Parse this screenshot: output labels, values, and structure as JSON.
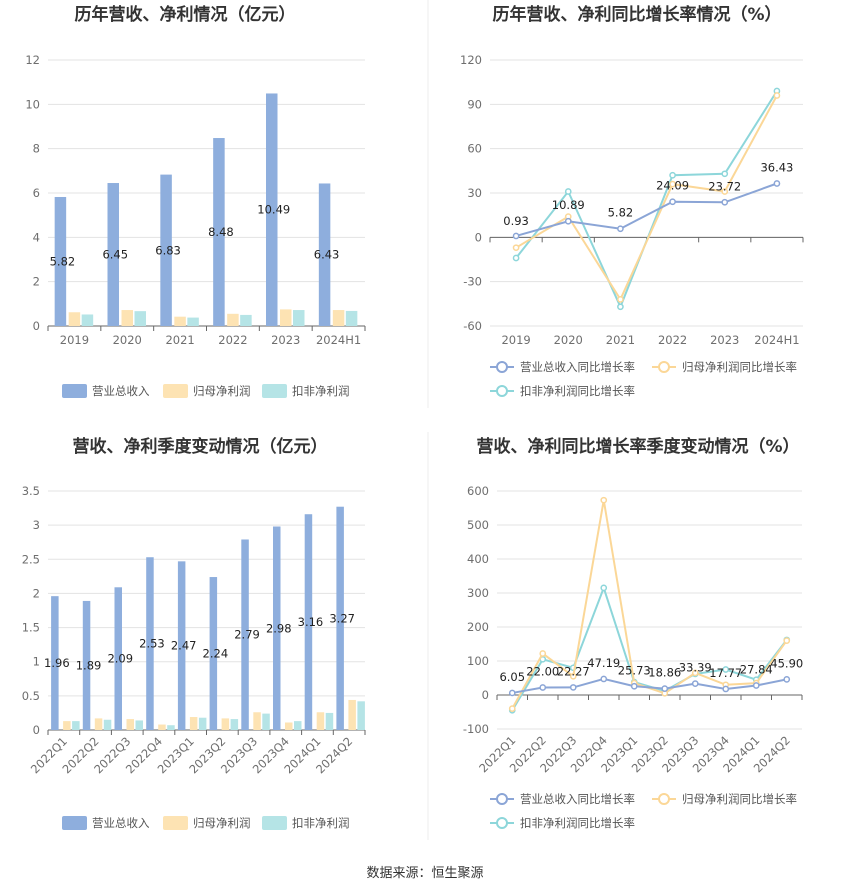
{
  "colors": {
    "revenue": "#8eaedd",
    "net_profit": "#fde3b3",
    "deducted_profit": "#b5e4e6",
    "revenue_line": "#8ba5d6",
    "net_profit_line": "#fbd797",
    "deducted_line": "#8dd6da"
  },
  "source": "数据来源：恒生聚源",
  "chart_data": [
    {
      "type": "bar",
      "title": "历年营收、净利情况（亿元）",
      "categories": [
        "2019",
        "2020",
        "2021",
        "2022",
        "2023",
        "2024H1"
      ],
      "ylim": [
        0,
        12
      ],
      "yticks": [
        "0",
        "2",
        "4",
        "6",
        "8",
        "10",
        "12"
      ],
      "series": [
        {
          "name": "营业总收入",
          "values": [
            5.82,
            6.45,
            6.83,
            8.48,
            10.49,
            6.43
          ],
          "labels": [
            "5.82",
            "6.45",
            "6.83",
            "8.48",
            "10.49",
            "6.43"
          ]
        },
        {
          "name": "归母净利润",
          "values": [
            0.62,
            0.72,
            0.42,
            0.55,
            0.75,
            0.72
          ]
        },
        {
          "name": "扣非净利润",
          "values": [
            0.52,
            0.67,
            0.38,
            0.5,
            0.72,
            0.68
          ]
        }
      ],
      "legend": "bottom",
      "grid": true
    },
    {
      "type": "line",
      "title": "历年营收、净利同比增长率情况（%）",
      "categories": [
        "2019",
        "2020",
        "2021",
        "2022",
        "2023",
        "2024H1"
      ],
      "ylim": [
        -60,
        120
      ],
      "yticks": [
        "-60",
        "-30",
        "0",
        "30",
        "60",
        "90",
        "120"
      ],
      "series": [
        {
          "name": "营业总收入同比增长率",
          "values": [
            0.93,
            10.89,
            5.82,
            24.09,
            23.72,
            36.43
          ],
          "labels": [
            "0.93",
            "10.89",
            "5.82",
            "24.09",
            "23.72",
            "36.43"
          ]
        },
        {
          "name": "归母净利润同比增长率",
          "values": [
            -7,
            14,
            -42,
            36,
            31,
            96
          ]
        },
        {
          "name": "扣非净利润同比增长率",
          "values": [
            -14,
            31,
            -47,
            42,
            43,
            99
          ]
        }
      ],
      "legend": "bottom",
      "grid": true
    },
    {
      "type": "bar",
      "title": "营收、净利季度变动情况（亿元）",
      "categories": [
        "2022Q1",
        "2022Q2",
        "2022Q3",
        "2022Q4",
        "2023Q1",
        "2023Q2",
        "2023Q3",
        "2023Q4",
        "2024Q1",
        "2024Q2"
      ],
      "ylim": [
        0,
        3.5
      ],
      "yticks": [
        "0",
        "0.5",
        "1",
        "1.5",
        "2",
        "2.5",
        "3",
        "3.5"
      ],
      "series": [
        {
          "name": "营业总收入",
          "values": [
            1.96,
            1.89,
            2.09,
            2.53,
            2.47,
            2.24,
            2.79,
            2.98,
            3.16,
            3.27
          ],
          "labels": [
            "1.96",
            "1.89",
            "2.09",
            "2.53",
            "2.47",
            "2.24",
            "2.79",
            "2.98",
            "3.16",
            "3.27"
          ]
        },
        {
          "name": "归母净利润",
          "values": [
            0.13,
            0.17,
            0.16,
            0.08,
            0.19,
            0.17,
            0.26,
            0.11,
            0.26,
            0.44
          ]
        },
        {
          "name": "扣非净利润",
          "values": [
            0.13,
            0.15,
            0.14,
            0.07,
            0.18,
            0.16,
            0.24,
            0.13,
            0.25,
            0.42
          ]
        }
      ],
      "legend": "bottom",
      "grid": true
    },
    {
      "type": "line",
      "title": "营收、净利同比增长率季度变动情况（%）",
      "categories": [
        "2022Q1",
        "2022Q2",
        "2022Q3",
        "2022Q4",
        "2023Q1",
        "2023Q2",
        "2023Q3",
        "2023Q4",
        "2024Q1",
        "2024Q2"
      ],
      "ylim": [
        -100,
        600
      ],
      "yticks": [
        "-100",
        "0",
        "100",
        "200",
        "300",
        "400",
        "500",
        "600"
      ],
      "series": [
        {
          "name": "营业总收入同比增长率",
          "values": [
            6.05,
            22.0,
            22.27,
            47.19,
            25.73,
            18.86,
            33.39,
            17.77,
            27.84,
            45.9
          ],
          "labels": [
            "6.05",
            "22.00",
            "22.27",
            "47.19",
            "25.73",
            "18.86",
            "33.39",
            "17.77",
            "27.84",
            "45.90"
          ]
        },
        {
          "name": "归母净利润同比增长率",
          "values": [
            -40,
            122,
            55,
            573,
            35,
            5,
            65,
            30,
            35,
            160
          ]
        },
        {
          "name": "扣非净利润同比增长率",
          "values": [
            -45,
            105,
            80,
            315,
            38,
            12,
            62,
            75,
            45,
            162
          ]
        }
      ],
      "legend": "bottom",
      "grid": true
    }
  ]
}
